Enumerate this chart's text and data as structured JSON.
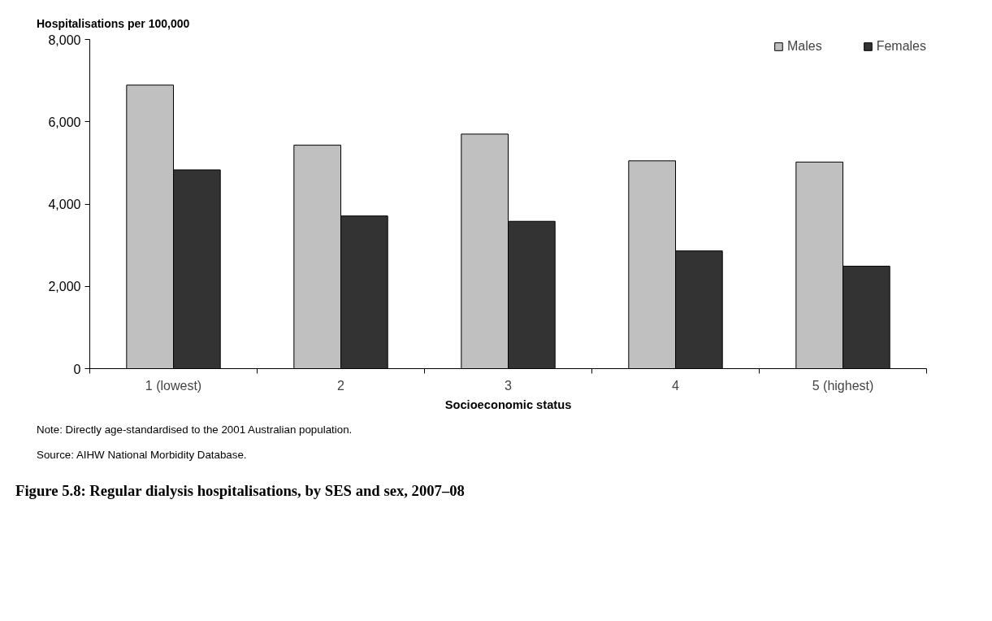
{
  "chart_data": {
    "type": "bar",
    "title": "Figure 5.8: Regular dialysis hospitalisations, by SES and sex, 2007–08",
    "xlabel": "Socioeconomic status",
    "ylabel": "Hospitalisations per 100,000",
    "categories": [
      "1 (lowest)",
      "2",
      "3",
      "4",
      "5 (highest)"
    ],
    "series": [
      {
        "name": "Males",
        "color": "#c0c0c0",
        "values": [
          6890,
          5430,
          5700,
          5050,
          5020
        ]
      },
      {
        "name": "Females",
        "color": "#333333",
        "values": [
          4830,
          3710,
          3580,
          2860,
          2490
        ]
      }
    ],
    "ylim": [
      0,
      8000
    ],
    "yticks": [
      {
        "value": 0,
        "label": "0"
      },
      {
        "value": 2000,
        "label": "2,000"
      },
      {
        "value": 4000,
        "label": "4,000"
      },
      {
        "value": 6000,
        "label": "6,000"
      },
      {
        "value": 8000,
        "label": "8,000"
      }
    ],
    "grid": false,
    "legend": "top right",
    "annotations": [
      "Note: Directly age-standardised to the 2001 Australian population.",
      "Source: AIHW National Morbidity Database."
    ]
  }
}
